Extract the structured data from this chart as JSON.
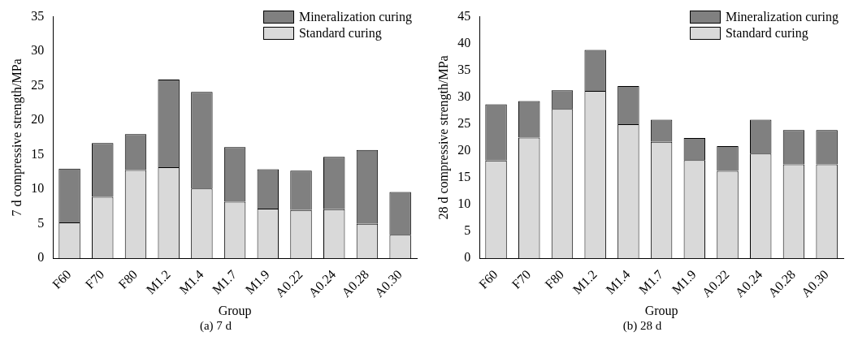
{
  "chart_data": [
    {
      "type": "bar",
      "stacked": true,
      "xlabel": "Group",
      "ylabel": "7 d compressive strength/MPa",
      "categories": [
        "F60",
        "F70",
        "F80",
        "M1.2",
        "M1.4",
        "M1.7",
        "M1.9",
        "A0.22",
        "A0.24",
        "A0.28",
        "A0.30"
      ],
      "series": [
        {
          "name": "Standard curing",
          "color": "#d9d9d9",
          "values": [
            5.2,
            8.9,
            12.8,
            13.2,
            10.1,
            8.2,
            7.2,
            7.0,
            7.1,
            5.0,
            3.4
          ]
        },
        {
          "name": "Mineralization curing",
          "color": "#808080",
          "values": [
            7.8,
            7.8,
            5.2,
            12.7,
            14.0,
            7.9,
            5.7,
            5.7,
            7.6,
            10.7,
            6.2
          ]
        }
      ],
      "ylim": [
        0,
        35
      ],
      "yticks": [
        0,
        5,
        10,
        15,
        20,
        25,
        30,
        35
      ],
      "grid": false,
      "legend": "top right",
      "annotations": [
        "(a) 7 d"
      ]
    },
    {
      "type": "bar",
      "stacked": true,
      "xlabel": "Group",
      "ylabel": "28 d compressive strength/MPa",
      "categories": [
        "F60",
        "F70",
        "F80",
        "M1.2",
        "M1.4",
        "M1.7",
        "M1.9",
        "A0.22",
        "A0.24",
        "A0.28",
        "A0.30"
      ],
      "series": [
        {
          "name": "Standard curing",
          "color": "#d9d9d9",
          "values": [
            18.2,
            22.5,
            27.8,
            31.2,
            25.0,
            21.7,
            18.3,
            16.3,
            19.5,
            17.5,
            17.5
          ]
        },
        {
          "name": "Mineralization curing",
          "color": "#808080",
          "values": [
            10.5,
            6.8,
            3.5,
            7.6,
            7.1,
            4.1,
            4.1,
            4.6,
            6.3,
            6.4,
            6.4
          ]
        }
      ],
      "ylim": [
        0,
        45
      ],
      "yticks": [
        0,
        5,
        10,
        15,
        20,
        25,
        30,
        35,
        40,
        45
      ],
      "grid": false,
      "legend": "top right",
      "annotations": [
        "(b) 28 d"
      ]
    }
  ]
}
